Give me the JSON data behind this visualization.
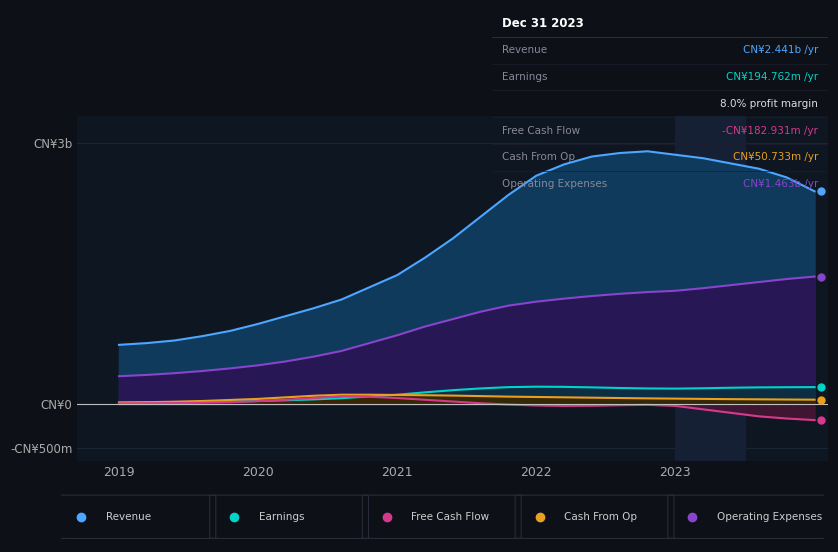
{
  "background_color": "#0d1117",
  "plot_bg_color": "#0e1621",
  "x_years": [
    2019.0,
    2019.2,
    2019.4,
    2019.6,
    2019.8,
    2020.0,
    2020.2,
    2020.4,
    2020.6,
    2020.8,
    2021.0,
    2021.2,
    2021.4,
    2021.6,
    2021.8,
    2022.0,
    2022.2,
    2022.4,
    2022.6,
    2022.8,
    2023.0,
    2023.2,
    2023.4,
    2023.6,
    2023.8,
    2024.0
  ],
  "revenue": [
    680,
    700,
    730,
    780,
    840,
    920,
    1010,
    1100,
    1200,
    1340,
    1480,
    1680,
    1900,
    2150,
    2400,
    2620,
    2750,
    2840,
    2880,
    2900,
    2860,
    2820,
    2760,
    2700,
    2600,
    2441
  ],
  "earnings": [
    18,
    20,
    22,
    26,
    30,
    36,
    44,
    54,
    68,
    88,
    108,
    135,
    160,
    180,
    195,
    200,
    198,
    192,
    185,
    180,
    178,
    182,
    188,
    192,
    194,
    195
  ],
  "free_cash_flow": [
    8,
    10,
    12,
    16,
    22,
    34,
    50,
    70,
    90,
    85,
    70,
    50,
    30,
    10,
    -5,
    -15,
    -20,
    -18,
    -12,
    -8,
    -20,
    -60,
    -100,
    -140,
    -165,
    -183
  ],
  "cash_from_op": [
    18,
    22,
    28,
    36,
    48,
    60,
    78,
    96,
    108,
    108,
    105,
    102,
    98,
    92,
    86,
    82,
    78,
    74,
    70,
    66,
    63,
    60,
    57,
    55,
    53,
    51
  ],
  "op_expenses": [
    320,
    335,
    355,
    380,
    410,
    445,
    490,
    545,
    610,
    700,
    790,
    890,
    975,
    1060,
    1130,
    1175,
    1210,
    1240,
    1265,
    1285,
    1300,
    1330,
    1365,
    1400,
    1435,
    1463
  ],
  "revenue_fill": "#0f3a5c",
  "revenue_line": "#4da6ff",
  "earnings_fill": "#0a3040",
  "earnings_line": "#00d4c8",
  "fcf_fill": "#4a1535",
  "fcf_line": "#d43a8c",
  "cashop_fill": "#3a2800",
  "cashop_line": "#e8a020",
  "opex_fill": "#2a1555",
  "opex_line": "#8844cc",
  "highlight_x_start": 2023.0,
  "highlight_x_end": 2023.5,
  "highlight_color": "#152035",
  "ylim_min": -650,
  "ylim_max": 3300,
  "ytick_values": [
    3000,
    0,
    -500
  ],
  "ytick_labels": [
    "CN¥3b",
    "CN¥0",
    "-CN¥500m"
  ],
  "xtick_values": [
    2019,
    2020,
    2021,
    2022,
    2023
  ],
  "xlim_min": 2018.7,
  "xlim_max": 2024.1,
  "legend_labels": [
    "Revenue",
    "Earnings",
    "Free Cash Flow",
    "Cash From Op",
    "Operating Expenses"
  ],
  "legend_colors": [
    "#4da6ff",
    "#00d4c8",
    "#d43a8c",
    "#e8a020",
    "#8844cc"
  ],
  "table_bg": "#0a0e14",
  "table_border": "#2a2a3a",
  "table_header": "Dec 31 2023",
  "table_rows": [
    {
      "label": "Revenue",
      "value": "CN¥2.441b /yr",
      "vcolor": "#4da6ff"
    },
    {
      "label": "Earnings",
      "value": "CN¥194.762m /yr",
      "vcolor": "#00d4c8"
    },
    {
      "label": "",
      "value": "8.0% profit margin",
      "vcolor": "#dddddd"
    },
    {
      "label": "Free Cash Flow",
      "value": "-CN¥182.931m /yr",
      "vcolor": "#d43a8c"
    },
    {
      "label": "Cash From Op",
      "value": "CN¥50.733m /yr",
      "vcolor": "#e8a020"
    },
    {
      "label": "Operating Expenses",
      "value": "CN¥1.463b /yr",
      "vcolor": "#8844cc"
    }
  ]
}
